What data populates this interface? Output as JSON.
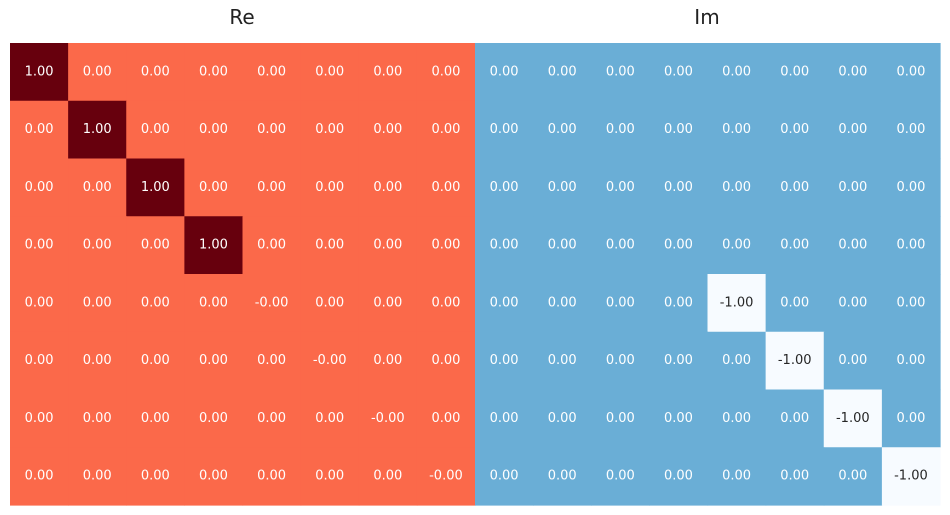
{
  "chart_data": [
    {
      "type": "heatmap",
      "title": "Re",
      "colormap": "Reds",
      "vmin": -1,
      "vmax": 1,
      "values": [
        [
          "1.00",
          "0.00",
          "0.00",
          "0.00",
          "0.00",
          "0.00",
          "0.00",
          "0.00"
        ],
        [
          "0.00",
          "1.00",
          "0.00",
          "0.00",
          "0.00",
          "0.00",
          "0.00",
          "0.00"
        ],
        [
          "0.00",
          "0.00",
          "1.00",
          "0.00",
          "0.00",
          "0.00",
          "0.00",
          "0.00"
        ],
        [
          "0.00",
          "0.00",
          "0.00",
          "1.00",
          "0.00",
          "0.00",
          "0.00",
          "0.00"
        ],
        [
          "0.00",
          "0.00",
          "0.00",
          "0.00",
          "-0.00",
          "0.00",
          "0.00",
          "0.00"
        ],
        [
          "0.00",
          "0.00",
          "0.00",
          "0.00",
          "0.00",
          "-0.00",
          "0.00",
          "0.00"
        ],
        [
          "0.00",
          "0.00",
          "0.00",
          "0.00",
          "0.00",
          "0.00",
          "-0.00",
          "0.00"
        ],
        [
          "0.00",
          "0.00",
          "0.00",
          "0.00",
          "0.00",
          "0.00",
          "0.00",
          "-0.00"
        ]
      ]
    },
    {
      "type": "heatmap",
      "title": "Im",
      "colormap": "Blues",
      "vmin": -1,
      "vmax": 1,
      "values": [
        [
          "0.00",
          "0.00",
          "0.00",
          "0.00",
          "0.00",
          "0.00",
          "0.00",
          "0.00"
        ],
        [
          "0.00",
          "0.00",
          "0.00",
          "0.00",
          "0.00",
          "0.00",
          "0.00",
          "0.00"
        ],
        [
          "0.00",
          "0.00",
          "0.00",
          "0.00",
          "0.00",
          "0.00",
          "0.00",
          "0.00"
        ],
        [
          "0.00",
          "0.00",
          "0.00",
          "0.00",
          "0.00",
          "0.00",
          "0.00",
          "0.00"
        ],
        [
          "0.00",
          "0.00",
          "0.00",
          "0.00",
          "-1.00",
          "0.00",
          "0.00",
          "0.00"
        ],
        [
          "0.00",
          "0.00",
          "0.00",
          "0.00",
          "0.00",
          "-1.00",
          "0.00",
          "0.00"
        ],
        [
          "0.00",
          "0.00",
          "0.00",
          "0.00",
          "0.00",
          "0.00",
          "-1.00",
          "0.00"
        ],
        [
          "0.00",
          "0.00",
          "0.00",
          "0.00",
          "0.00",
          "0.00",
          "0.00",
          "-1.00"
        ]
      ]
    }
  ],
  "colors": {
    "re_neg": "#ffeee6",
    "re_zero": "#fb694a",
    "re_pos": "#67000d",
    "im_neg": "#f7fbff",
    "im_zero": "#6aaed6",
    "im_pos": "#08306b",
    "text_light": "#ffffff",
    "text_dark": "#262626"
  }
}
